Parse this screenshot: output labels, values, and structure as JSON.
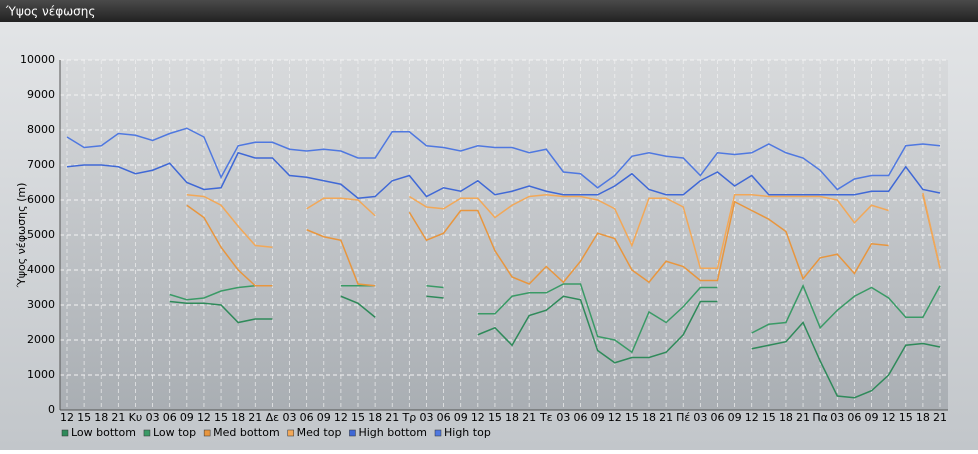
{
  "chart_data": {
    "type": "line",
    "title": "Ύψος νέφωσης",
    "y_label": "Ύψος νέφωσης (m)",
    "categories": [
      "12",
      "15",
      "18",
      "21",
      "Κυ",
      "03",
      "06",
      "09",
      "12",
      "15",
      "18",
      "21",
      "Δε",
      "03",
      "06",
      "09",
      "12",
      "15",
      "18",
      "21",
      "Τρ",
      "03",
      "06",
      "09",
      "12",
      "15",
      "18",
      "21",
      "Τε",
      "03",
      "06",
      "09",
      "12",
      "15",
      "18",
      "21",
      "Πέ",
      "03",
      "06",
      "09",
      "12",
      "15",
      "18",
      "21",
      "Πα",
      "03",
      "06",
      "09",
      "12",
      "15",
      "18",
      "21"
    ],
    "ylim": [
      0,
      10000
    ],
    "yticks": [
      0,
      1000,
      2000,
      3000,
      4000,
      5000,
      6000,
      7000,
      8000,
      9000,
      10000
    ],
    "grid": true,
    "legend": "bottom",
    "series": [
      {
        "name": "Low bottom",
        "color": "#2f8a5a",
        "values": [
          null,
          null,
          null,
          null,
          null,
          null,
          3100,
          3050,
          3050,
          3000,
          2500,
          2600,
          2600,
          null,
          null,
          null,
          3250,
          3050,
          2650,
          null,
          null,
          3250,
          3200,
          null,
          2150,
          2350,
          1850,
          2700,
          2850,
          3250,
          3150,
          1700,
          1350,
          1500,
          1500,
          1650,
          2150,
          3100,
          3100,
          null,
          1750,
          1850,
          1950,
          2500,
          1400,
          400,
          350,
          550,
          1000,
          1850,
          1900,
          1800
        ]
      },
      {
        "name": "Low top",
        "color": "#3a9a66",
        "values": [
          null,
          null,
          null,
          null,
          null,
          null,
          3300,
          3150,
          3200,
          3400,
          3500,
          3550,
          3550,
          null,
          null,
          null,
          3550,
          3550,
          3550,
          null,
          null,
          3550,
          3500,
          null,
          2750,
          2750,
          3250,
          3350,
          3350,
          3600,
          3600,
          2100,
          2000,
          1650,
          2800,
          2500,
          2950,
          3500,
          3500,
          null,
          2200,
          2450,
          2500,
          3550,
          2350,
          2850,
          3250,
          3500,
          3200,
          2650,
          2650,
          3550
        ]
      },
      {
        "name": "Med bottom",
        "color": "#e8963e",
        "values": [
          null,
          null,
          null,
          null,
          null,
          null,
          null,
          5850,
          5500,
          4650,
          4000,
          3550,
          3550,
          null,
          5150,
          4950,
          4850,
          3600,
          3550,
          null,
          5650,
          4850,
          5050,
          5700,
          5700,
          4550,
          3800,
          3600,
          4100,
          3650,
          4250,
          5050,
          4900,
          4000,
          3650,
          4250,
          4100,
          3700,
          3700,
          5950,
          5700,
          5450,
          5100,
          3750,
          4350,
          4450,
          3900,
          4750,
          4700,
          null,
          6150,
          4050
        ]
      },
      {
        "name": "Med top",
        "color": "#f2a858",
        "values": [
          null,
          null,
          null,
          null,
          null,
          null,
          null,
          6150,
          6100,
          5850,
          5250,
          4700,
          4650,
          null,
          5750,
          6050,
          6050,
          6000,
          5550,
          null,
          6100,
          5800,
          5750,
          6050,
          6050,
          5500,
          5850,
          6100,
          6150,
          6100,
          6100,
          6000,
          5750,
          4700,
          6050,
          6050,
          5800,
          4050,
          4050,
          6150,
          6150,
          6100,
          6100,
          6100,
          6100,
          6000,
          5350,
          5850,
          5700,
          null,
          6200,
          4050
        ]
      },
      {
        "name": "High bottom",
        "color": "#3f68d6",
        "values": [
          6950,
          7000,
          7000,
          6950,
          6750,
          6850,
          7050,
          6500,
          6300,
          6350,
          7350,
          7200,
          7200,
          6700,
          6650,
          6550,
          6450,
          6050,
          6100,
          6550,
          6700,
          6100,
          6350,
          6250,
          6550,
          6150,
          6250,
          6400,
          6250,
          6150,
          6150,
          6150,
          6400,
          6750,
          6300,
          6150,
          6150,
          6550,
          6800,
          6400,
          6700,
          6150,
          6150,
          6150,
          6150,
          6150,
          6150,
          6250,
          6250,
          6950,
          6300,
          6200
        ]
      },
      {
        "name": "High top",
        "color": "#4f78e0",
        "values": [
          7800,
          7500,
          7550,
          7900,
          7850,
          7700,
          7900,
          8050,
          7800,
          6650,
          7550,
          7650,
          7650,
          7450,
          7400,
          7450,
          7400,
          7200,
          7200,
          7950,
          7950,
          7550,
          7500,
          7400,
          7550,
          7500,
          7500,
          7350,
          7450,
          6800,
          6750,
          6350,
          6700,
          7250,
          7350,
          7250,
          7200,
          6700,
          7350,
          7300,
          7350,
          7600,
          7350,
          7200,
          6850,
          6300,
          6600,
          6700,
          6700,
          7550,
          7600,
          7550
        ]
      }
    ]
  }
}
